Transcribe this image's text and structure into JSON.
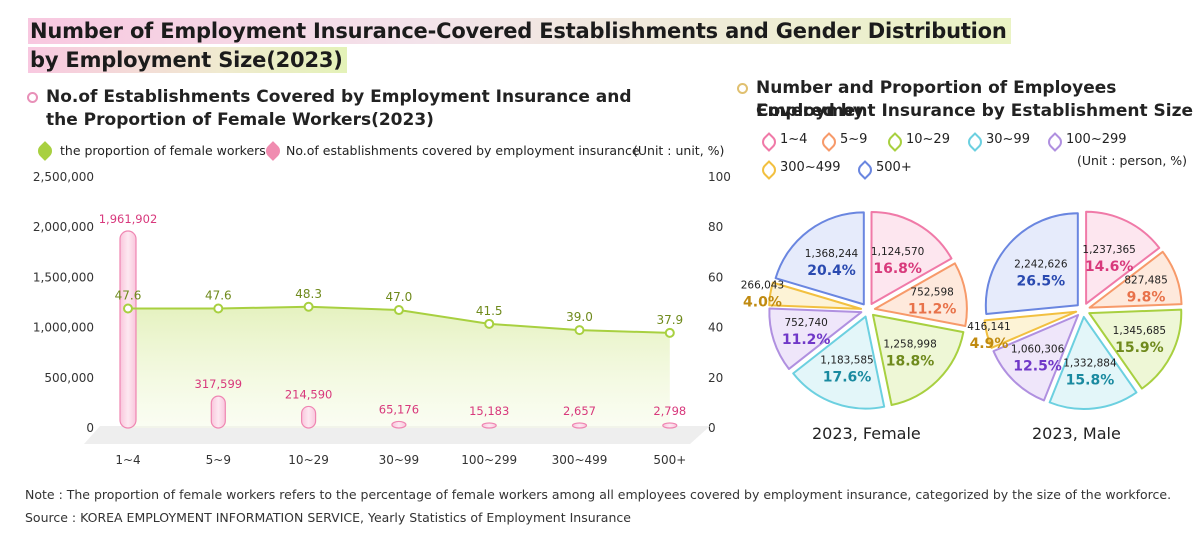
{
  "title": {
    "line1": "Number of Employment Insurance-Covered Establishments and Gender Distribution",
    "line2": "by Employment Size(2023)"
  },
  "left_chart": {
    "subtitle_line1": "No.of Establishments Covered by Employment Insurance and",
    "subtitle_line2": "the Proportion of Female Workers(2023)",
    "legend_line": "the proportion of female workers",
    "legend_bar": "No.of establishments covered by employment insurance",
    "unit": "(Unit : unit, %)"
  },
  "right_chart": {
    "subtitle_line1": "Number and Proportion of Employees Covered by",
    "subtitle_line2": "Employment Insurance by Establishment Size",
    "unit": "(Unit : person, %)",
    "female_label": "2023, Female",
    "male_label": "2023, Male"
  },
  "note": "Note : The proportion of female workers refers to the percentage of female workers among all employees covered by employment insurance, categorized by the size of the workforce.",
  "source": "Source : KOREA EMPLOYMENT INFORMATION SERVICE, Yearly Statistics of Employment Insurance",
  "colors": {
    "pink": "#e878a8",
    "green": "#a8d040",
    "size_colors": [
      "#f07aa8",
      "#f79a6a",
      "#a8d040",
      "#6cd0e0",
      "#b090e0",
      "#f2c040",
      "#6a86e0"
    ]
  },
  "chart_data": [
    {
      "type": "bar",
      "title": "No.of Establishments Covered by Employment Insurance and the Proportion of Female Workers(2023)",
      "categories": [
        "1~4",
        "5~9",
        "10~29",
        "30~99",
        "100~299",
        "300~499",
        "500+"
      ],
      "series": [
        {
          "name": "No.of establishments covered by employment insurance",
          "axis": "left",
          "type": "bar",
          "values": [
            1961902,
            317599,
            214590,
            65176,
            15183,
            2657,
            2798
          ],
          "labels": [
            "1,961,902",
            "317,599",
            "214,590",
            "65,176",
            "15,183",
            "2,657",
            "2,798"
          ]
        },
        {
          "name": "the proportion of female workers",
          "axis": "right",
          "type": "line",
          "values": [
            47.6,
            47.6,
            48.3,
            47.0,
            41.5,
            39.0,
            37.9
          ],
          "labels": [
            "47.6",
            "47.6",
            "48.3",
            "47.0",
            "41.5",
            "39.0",
            "37.9"
          ]
        }
      ],
      "ylim_left": [
        0,
        2500000
      ],
      "ylim_right": [
        0,
        100
      ],
      "yticks_left": [
        "2,500,000",
        "2,000,000",
        "1,500,000",
        "1,000,000",
        "500,000",
        "0"
      ],
      "yticks_right": [
        "100",
        "80",
        "60",
        "40",
        "20",
        "0"
      ]
    },
    {
      "type": "pie",
      "title": "2023, Female",
      "categories": [
        "1~4",
        "5~9",
        "10~29",
        "30~99",
        "100~299",
        "300~499",
        "500+"
      ],
      "values": [
        1124570,
        752598,
        1258998,
        1183585,
        752740,
        266043,
        1368244
      ],
      "value_labels": [
        "1,124,570",
        "752,598",
        "1,258,998",
        "1,183,585",
        "752,740",
        "266,043",
        "1,368,244"
      ],
      "percents": [
        16.8,
        11.2,
        18.8,
        17.6,
        11.2,
        4.0,
        20.4
      ],
      "percent_labels": [
        "16.8%",
        "11.2%",
        "18.8%",
        "17.6%",
        "11.2%",
        "4.0%",
        "20.4%"
      ]
    },
    {
      "type": "pie",
      "title": "2023, Male",
      "categories": [
        "1~4",
        "5~9",
        "10~29",
        "30~99",
        "100~299",
        "300~499",
        "500+"
      ],
      "values": [
        1237365,
        827485,
        1345685,
        1332884,
        1060306,
        416141,
        2242626
      ],
      "value_labels": [
        "1,237,365",
        "827,485",
        "1,345,685",
        "1,332,884",
        "1,060,306",
        "416,141",
        "2,242,626"
      ],
      "percents": [
        14.6,
        9.8,
        15.9,
        15.8,
        12.5,
        4.9,
        26.5
      ],
      "percent_labels": [
        "14.6%",
        "9.8%",
        "15.9%",
        "15.8%",
        "12.5%",
        "4.9%",
        "26.5%"
      ]
    }
  ]
}
